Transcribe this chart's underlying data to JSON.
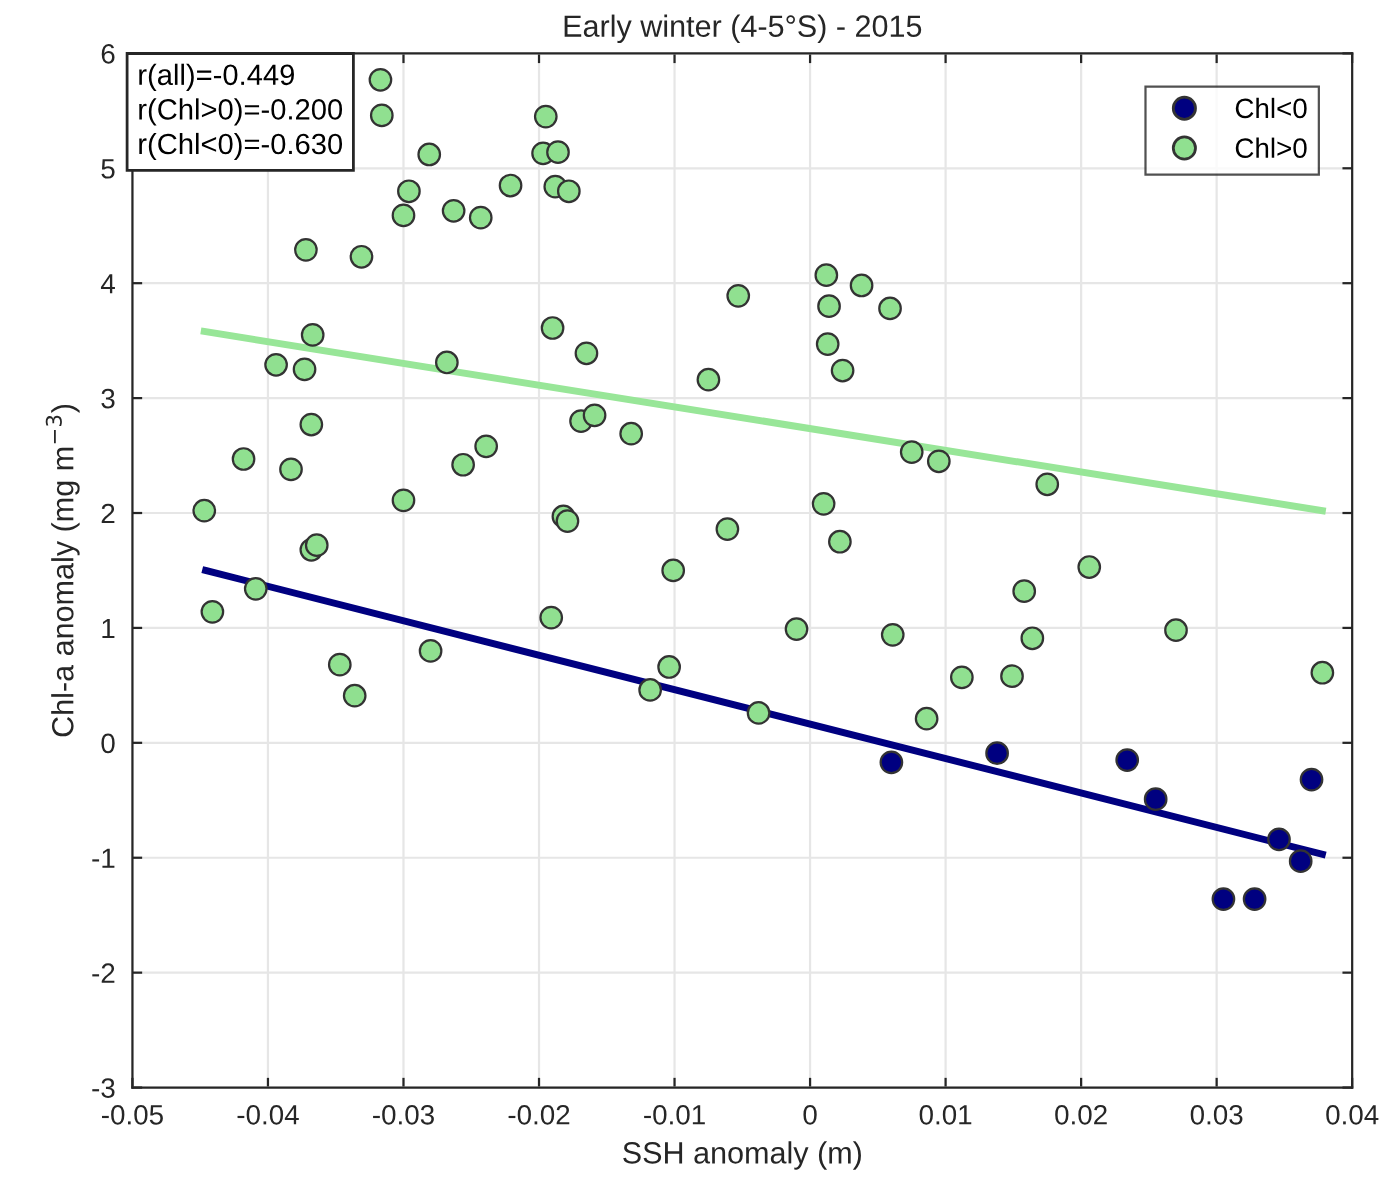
{
  "chart_data": {
    "type": "scatter",
    "title": "Early winter (4-5°S) - 2015",
    "xlabel": "SSH anomaly (m)",
    "ylabel": "Chl-a anomaly (mg m$^{−3}$)",
    "xlim": [
      -0.05,
      0.04
    ],
    "xticks": [
      -0.05,
      -0.04,
      -0.03,
      -0.02,
      -0.01,
      0,
      0.01,
      0.02,
      0.03,
      0.04
    ],
    "ylim": [
      -3,
      6
    ],
    "yticks": [
      -3,
      -2,
      -1,
      0,
      1,
      2,
      3,
      4,
      5,
      6
    ],
    "grid": true,
    "legend": "top right",
    "annotations": [
      "r(all)=-0.449\nr(Chl>0)=-0.200\nr(Chl<0)=-0.630"
    ],
    "series": [
      {
        "name": "Chl<0",
        "marker": "circle",
        "color": "#000080",
        "x": [
          0.006,
          0.0138,
          0.0234,
          0.0255,
          0.037,
          0.0346,
          0.0362,
          0.0305,
          0.0328
        ],
        "values": [
          -0.17,
          -0.09,
          -0.15,
          -0.49,
          -0.32,
          -0.84,
          -1.03,
          -1.36,
          -1.36
        ]
      },
      {
        "name": "Chl>0",
        "marker": "circle",
        "color": "#90e090",
        "x": [
          -0.0317,
          -0.0316,
          -0.0281,
          -0.0296,
          -0.03,
          -0.0263,
          -0.0243,
          -0.0221,
          -0.0195,
          -0.0197,
          -0.0186,
          -0.0188,
          -0.0178,
          -0.0372,
          -0.0331,
          -0.0053,
          -0.0367,
          -0.0394,
          -0.0373,
          -0.0268,
          -0.019,
          -0.0165,
          -0.0075,
          -0.0368,
          -0.0169,
          -0.0159,
          -0.0132,
          -0.0418,
          -0.0383,
          -0.0256,
          -0.0239,
          -0.0447,
          -0.03,
          -0.0182,
          -0.0179,
          -0.0368,
          -0.0364,
          -0.0061,
          -0.0101,
          0.0012,
          0.0038,
          0.0014,
          0.0059,
          0.0013,
          0.0024,
          0.0075,
          0.0095,
          0.0175,
          0.001,
          0.0022,
          0.0206,
          -0.0441,
          -0.0409,
          -0.0347,
          -0.0336,
          -0.028,
          -0.0191,
          -0.0118,
          -0.0104,
          -0.0038,
          -0.001,
          0.0061,
          0.0158,
          0.0164,
          0.027,
          0.0112,
          0.0149,
          0.0086,
          0.0378
        ],
        "values": [
          5.77,
          5.46,
          5.12,
          4.8,
          4.59,
          4.63,
          4.57,
          4.85,
          5.45,
          5.13,
          5.14,
          4.84,
          4.8,
          4.29,
          4.23,
          3.89,
          3.55,
          3.29,
          3.25,
          3.31,
          3.61,
          3.39,
          3.16,
          2.77,
          2.8,
          2.85,
          2.69,
          2.47,
          2.38,
          2.42,
          2.58,
          2.02,
          2.11,
          1.97,
          1.93,
          1.68,
          1.72,
          1.86,
          1.5,
          4.07,
          3.98,
          3.8,
          3.78,
          3.47,
          3.24,
          2.53,
          2.45,
          2.25,
          2.08,
          1.75,
          1.53,
          1.14,
          1.34,
          0.68,
          0.41,
          0.8,
          1.09,
          0.46,
          0.66,
          0.26,
          0.99,
          0.94,
          1.32,
          0.91,
          0.98,
          0.57,
          0.58,
          0.21,
          0.61
        ]
      },
      {
        "type": "line",
        "marker": "none",
        "color": "#000080",
        "x": [
          -0.0446,
          0.0378
        ],
        "values": [
          1.5,
          -0.97
        ]
      },
      {
        "type": "line",
        "marker": "none",
        "color": "#98e698",
        "x": [
          -0.0447,
          0.0378
        ],
        "values": [
          3.58,
          2.02
        ]
      }
    ]
  }
}
